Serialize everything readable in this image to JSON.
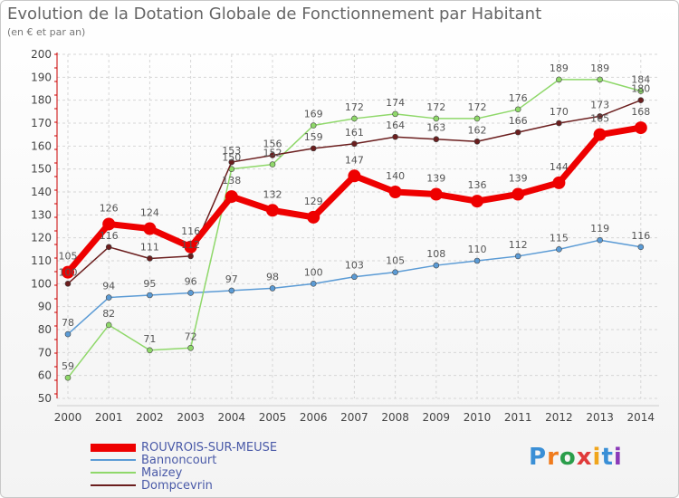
{
  "title": "Evolution de la Dotation Globale de Fonctionnement par Habitant",
  "subtitle": "(en € et par an)",
  "logo": {
    "text": "Proxiti",
    "colors": [
      "#3a8fd6",
      "#f07b1c",
      "#2a9d4a",
      "#e03a3a",
      "#f0a51c",
      "#3a8fd6",
      "#8b3ab8"
    ]
  },
  "chart_data": {
    "type": "line",
    "title": "Evolution de la Dotation Globale de Fonctionnement par Habitant",
    "subtitle": "(en € et par an)",
    "xlabel": "",
    "ylabel": "",
    "x": [
      "2000",
      "2001",
      "2002",
      "2003",
      "2004",
      "2005",
      "2006",
      "2007",
      "2008",
      "2009",
      "2010",
      "2011",
      "2012",
      "2013",
      "2014"
    ],
    "ylim": [
      50,
      200
    ],
    "yticks": [
      50,
      60,
      70,
      80,
      90,
      100,
      110,
      120,
      130,
      140,
      150,
      160,
      170,
      180,
      190,
      200
    ],
    "grid": true,
    "legend_position": "bottom-left",
    "series": [
      {
        "name": "ROUVROIS-SUR-MEUSE",
        "color": "#ee0000",
        "values": [
          105,
          126,
          124,
          116,
          138,
          132,
          129,
          147,
          140,
          139,
          136,
          139,
          144,
          165,
          168
        ]
      },
      {
        "name": "Bannoncourt",
        "color": "#5b9bd5",
        "values": [
          78,
          94,
          95,
          96,
          97,
          98,
          100,
          103,
          105,
          108,
          110,
          112,
          115,
          119,
          116
        ]
      },
      {
        "name": "Maizey",
        "color": "#8fd86a",
        "values": [
          59,
          82,
          71,
          72,
          150,
          152,
          169,
          172,
          174,
          172,
          172,
          176,
          189,
          189,
          184
        ]
      },
      {
        "name": "Dompcevrin",
        "color": "#6b1e1e",
        "values": [
          100,
          116,
          111,
          112,
          153,
          156,
          159,
          161,
          164,
          163,
          162,
          166,
          170,
          173,
          180
        ]
      }
    ]
  }
}
